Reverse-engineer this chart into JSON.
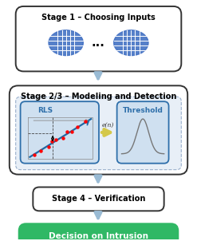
{
  "stage1_title": "Stage 1 – Choosing Inputs",
  "stage23_title": "Stage 2/3 – Modeling and Detection",
  "stage4_title": "Stage 4 – Verification",
  "final_title": "Decision on Intrusion",
  "rls_label": "RLS",
  "threshold_label": "Threshold",
  "error_label": "e(n)",
  "bg_color": "#ffffff",
  "stage1_box_ec": "#333333",
  "stage23_box_ec": "#333333",
  "stage4_box_ec": "#333333",
  "final_box_fc": "#30b865",
  "final_text_color": "#ffffff",
  "arrow_color": "#9abbd4",
  "arrow_yellow": "#d4c84a",
  "rls_border": "#2e6faa",
  "threshold_border": "#2e6faa",
  "dot_color": "#4472c4",
  "inner_bg": "#e8eff7",
  "inner_border": "#9ab0cc",
  "rls_bg": "#cfe0f0",
  "threshold_bg": "#cfe0f0"
}
